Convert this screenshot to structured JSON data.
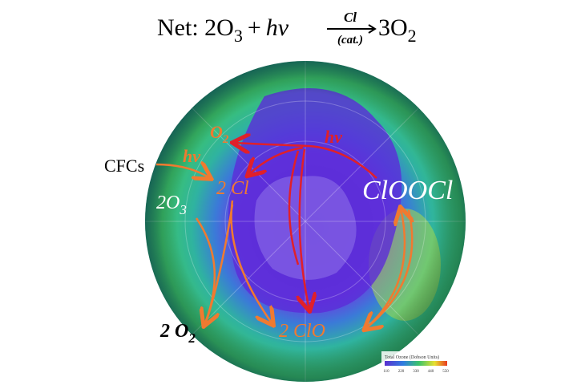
{
  "equation": {
    "prefix": "Net:",
    "reactant": "2O",
    "reactant_sub": "3",
    "plus": "+",
    "photon": "hν",
    "catalyst": "Cl",
    "catalyst_note": "(cat.)",
    "product": "3O",
    "product_sub": "2"
  },
  "labels": {
    "o2": "O",
    "o2_sub": "2",
    "photon_red": "hν",
    "cfcs": "CFCs",
    "photon_orange": "hν",
    "cl": "2 Cl",
    "o3": "2O",
    "o3_sub": "3",
    "clooci": "ClOOCl",
    "o2_product": "2 O",
    "o2_product_sub": "2",
    "clo": "2 ClO"
  },
  "legend": {
    "title": "Total Ozone (Dobson Units)",
    "ticks": [
      "110",
      "220",
      "330",
      "440",
      "550"
    ]
  }
}
